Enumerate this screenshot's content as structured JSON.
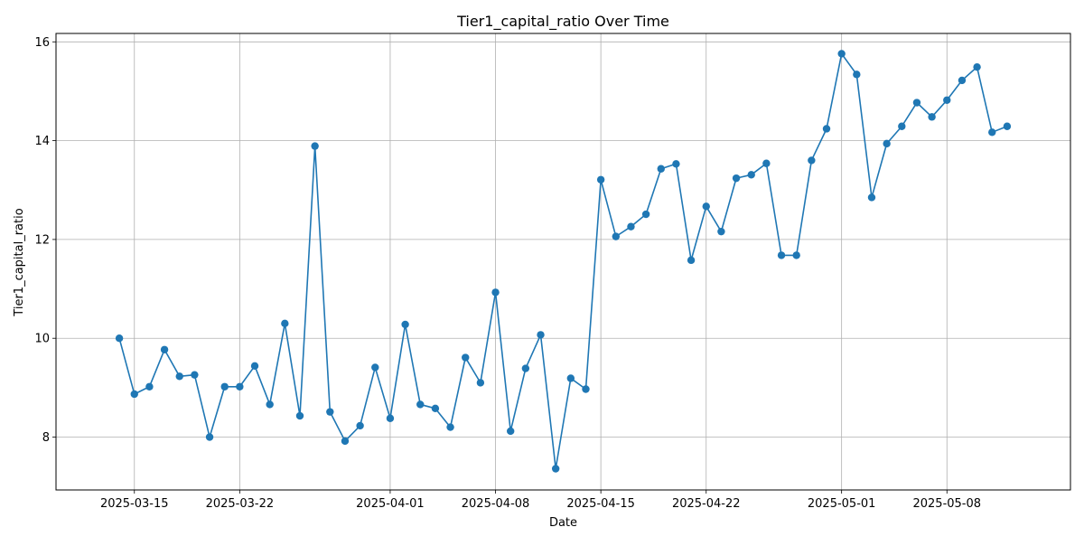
{
  "chart_data": {
    "type": "line",
    "title": "Tier1_capital_ratio Over Time",
    "xlabel": "Date",
    "ylabel": "Tier1_capital_ratio",
    "x_ticks": [
      "2025-03-15",
      "2025-03-22",
      "2025-04-01",
      "2025-04-08",
      "2025-04-15",
      "2025-04-22",
      "2025-05-01",
      "2025-05-08"
    ],
    "y_ticks": [
      8,
      10,
      12,
      14,
      16
    ],
    "xlim": [
      "2025-03-09T19:00",
      "2025-05-16T05:00"
    ],
    "ylim": [
      6.93,
      16.17
    ],
    "grid": true,
    "color": "#1f77b4",
    "series": [
      {
        "x": [
          "2025-03-14",
          "2025-03-15",
          "2025-03-16",
          "2025-03-17",
          "2025-03-18",
          "2025-03-19",
          "2025-03-20",
          "2025-03-21",
          "2025-03-22",
          "2025-03-23",
          "2025-03-24",
          "2025-03-25",
          "2025-03-26",
          "2025-03-27",
          "2025-03-28",
          "2025-03-29",
          "2025-03-30",
          "2025-03-31",
          "2025-04-01",
          "2025-04-02",
          "2025-04-03",
          "2025-04-04",
          "2025-04-05",
          "2025-04-06",
          "2025-04-07",
          "2025-04-08",
          "2025-04-09",
          "2025-04-10",
          "2025-04-11",
          "2025-04-12",
          "2025-04-13",
          "2025-04-14",
          "2025-04-15",
          "2025-04-16",
          "2025-04-17",
          "2025-04-18",
          "2025-04-19",
          "2025-04-20",
          "2025-04-21",
          "2025-04-22",
          "2025-04-23",
          "2025-04-24",
          "2025-04-25",
          "2025-04-26",
          "2025-04-27",
          "2025-04-28",
          "2025-04-29",
          "2025-04-30",
          "2025-05-01",
          "2025-05-02",
          "2025-05-03",
          "2025-05-04",
          "2025-05-05",
          "2025-05-06",
          "2025-05-07",
          "2025-05-08",
          "2025-05-09",
          "2025-05-10",
          "2025-05-11",
          "2025-05-12"
        ],
        "values": [
          10.0,
          8.87,
          9.02,
          9.77,
          9.23,
          9.26,
          8.0,
          9.02,
          9.02,
          9.44,
          8.66,
          10.3,
          8.43,
          13.89,
          8.51,
          7.92,
          8.23,
          9.41,
          8.38,
          10.28,
          8.66,
          8.58,
          8.2,
          9.61,
          9.1,
          10.93,
          8.12,
          9.39,
          10.07,
          7.36,
          9.19,
          8.97,
          13.21,
          12.06,
          12.26,
          12.51,
          13.43,
          13.53,
          11.58,
          12.67,
          12.16,
          13.24,
          13.31,
          13.54,
          11.68,
          11.68,
          13.6,
          14.24,
          15.76,
          15.34,
          12.85,
          13.94,
          14.29,
          14.77,
          14.48,
          14.82,
          15.22,
          15.49,
          14.17,
          14.29
        ]
      }
    ]
  }
}
